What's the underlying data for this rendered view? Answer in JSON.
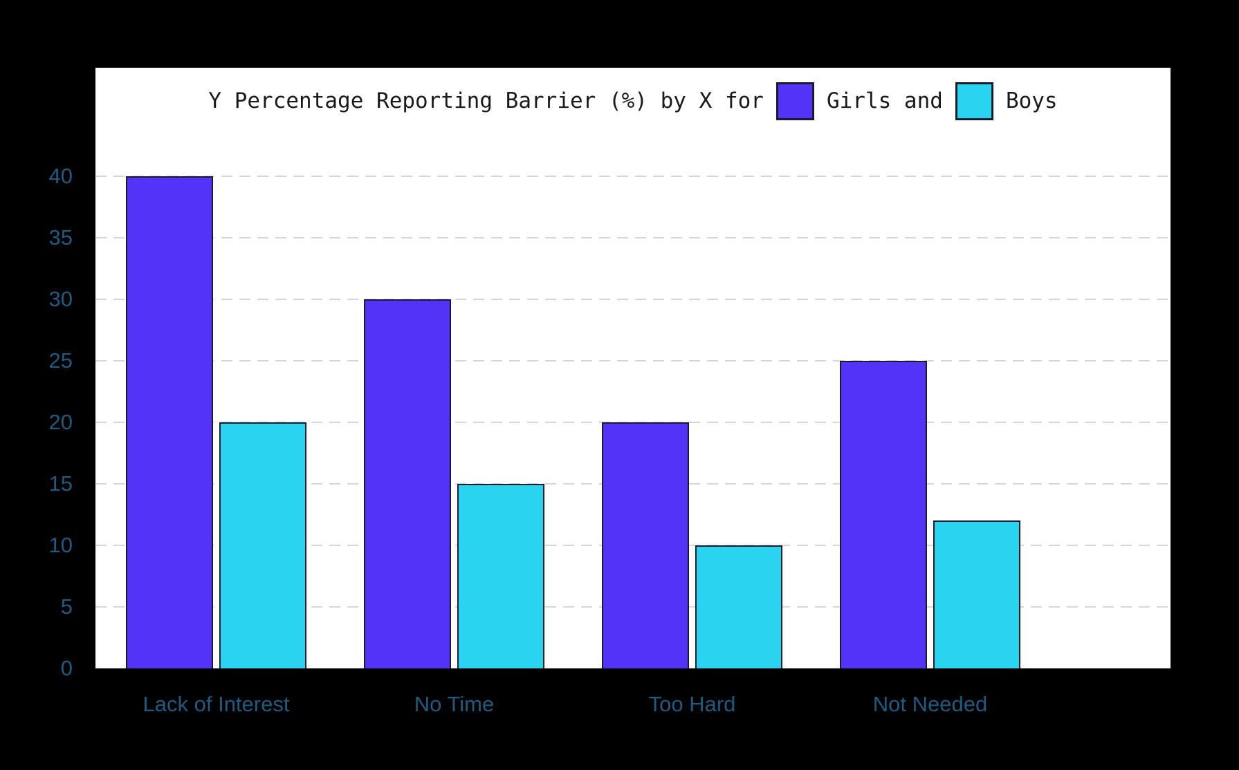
{
  "title": {
    "prefix": "Y Percentage Reporting Barrier (%) by X for",
    "girls_segment": "Girls and",
    "boys_segment": "Boys"
  },
  "colors": {
    "background": "#000000",
    "plot_background": "#ffffff",
    "girls_bar": "#5233f7",
    "boys_bar": "#2ad3ef",
    "bar_border": "#1a1a2e",
    "axis_label": "#1f5a80",
    "gridline": "#d6d6d6",
    "title_text": "#1a1a1a",
    "axis_line": "#000000"
  },
  "chart_data": {
    "type": "bar",
    "title": "Y Percentage Reporting Barrier (%) by X for Girls and Boys",
    "categories": [
      "Lack of Interest",
      "No Time",
      "Too Hard",
      "Not Needed"
    ],
    "series": [
      {
        "name": "Girls",
        "color": "#5233f7",
        "values": [
          40,
          30,
          20,
          25
        ]
      },
      {
        "name": "Boys",
        "color": "#2ad3ef",
        "values": [
          20,
          15,
          10,
          12
        ]
      }
    ],
    "xlabel": "",
    "ylabel": "",
    "ylim": [
      0,
      48.8
    ],
    "yticks": [
      0,
      5,
      10,
      15,
      20,
      25,
      30,
      35,
      40
    ],
    "grid": "horizontal-dashed",
    "legend_position": "title-inline"
  }
}
